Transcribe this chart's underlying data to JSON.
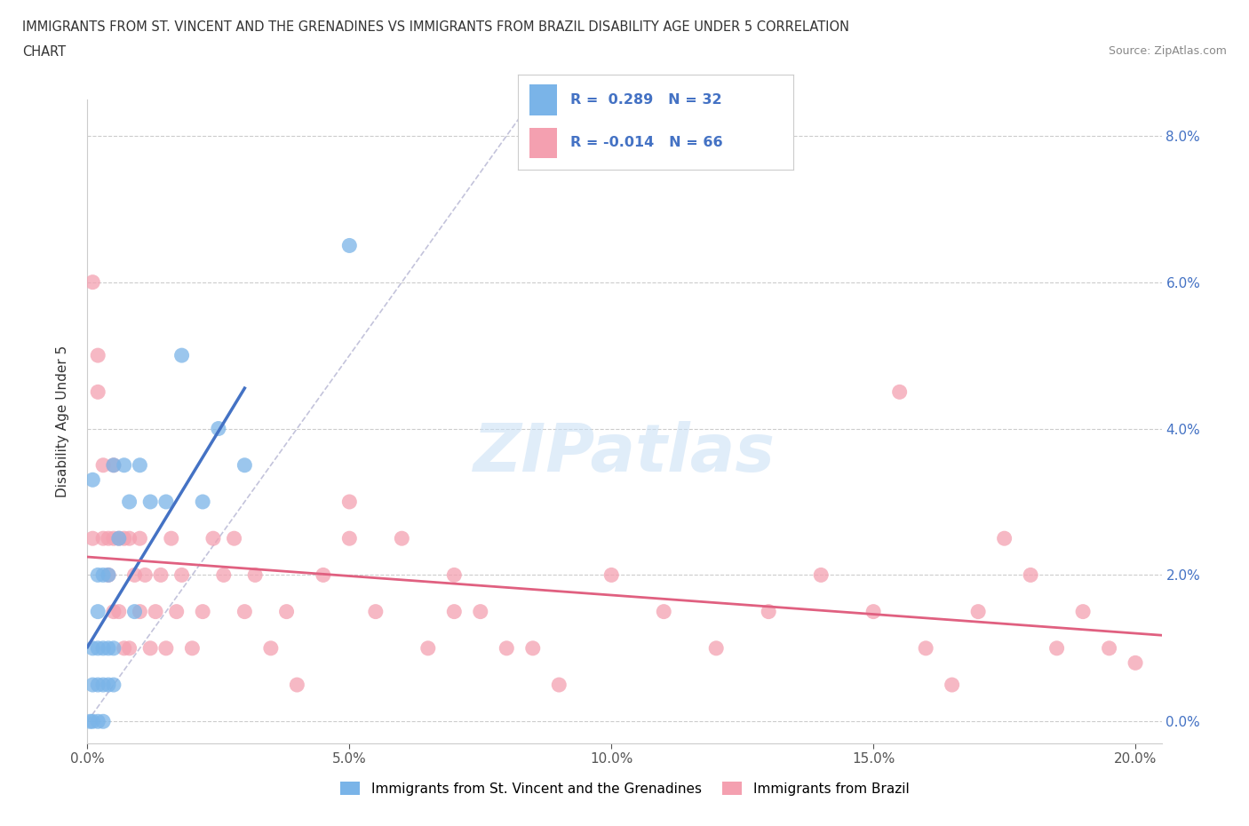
{
  "title_line1": "IMMIGRANTS FROM ST. VINCENT AND THE GRENADINES VS IMMIGRANTS FROM BRAZIL DISABILITY AGE UNDER 5 CORRELATION",
  "title_line2": "CHART",
  "source_text": "Source: ZipAtlas.com",
  "ylabel": "Disability Age Under 5",
  "watermark": "ZIPatlas",
  "R1": 0.289,
  "N1": 32,
  "R2": -0.014,
  "N2": 66,
  "color_sv": "#7ab4e8",
  "color_bz": "#f4a0b0",
  "color_sv_line": "#4472c4",
  "color_bz_line": "#e06080",
  "color_ytick": "#4472c4",
  "color_xtick": "#555555",
  "xlim": [
    0.0,
    0.205
  ],
  "ylim": [
    -0.003,
    0.085
  ],
  "xticks": [
    0.0,
    0.05,
    0.1,
    0.15,
    0.2
  ],
  "xtick_labels": [
    "0.0%",
    "5.0%",
    "10.0%",
    "15.0%",
    "20.0%"
  ],
  "yticks": [
    0.0,
    0.02,
    0.04,
    0.06,
    0.08
  ],
  "ytick_labels": [
    "0.0%",
    "2.0%",
    "4.0%",
    "6.0%",
    "8.0%"
  ],
  "sv_x": [
    0.0005,
    0.001,
    0.001,
    0.001,
    0.001,
    0.002,
    0.002,
    0.002,
    0.002,
    0.002,
    0.003,
    0.003,
    0.003,
    0.003,
    0.004,
    0.004,
    0.004,
    0.005,
    0.005,
    0.005,
    0.006,
    0.007,
    0.008,
    0.009,
    0.01,
    0.012,
    0.015,
    0.018,
    0.022,
    0.025,
    0.03,
    0.05
  ],
  "sv_y": [
    0.0,
    0.0,
    0.005,
    0.01,
    0.033,
    0.0,
    0.005,
    0.01,
    0.015,
    0.02,
    0.0,
    0.005,
    0.01,
    0.02,
    0.005,
    0.01,
    0.02,
    0.005,
    0.01,
    0.035,
    0.025,
    0.035,
    0.03,
    0.015,
    0.035,
    0.03,
    0.03,
    0.05,
    0.03,
    0.04,
    0.035,
    0.065
  ],
  "bz_x": [
    0.001,
    0.001,
    0.002,
    0.002,
    0.003,
    0.003,
    0.004,
    0.004,
    0.005,
    0.005,
    0.005,
    0.006,
    0.006,
    0.007,
    0.007,
    0.008,
    0.008,
    0.009,
    0.01,
    0.01,
    0.011,
    0.012,
    0.013,
    0.014,
    0.015,
    0.016,
    0.017,
    0.018,
    0.02,
    0.022,
    0.024,
    0.026,
    0.028,
    0.03,
    0.032,
    0.035,
    0.038,
    0.04,
    0.045,
    0.05,
    0.055,
    0.06,
    0.065,
    0.07,
    0.075,
    0.08,
    0.09,
    0.1,
    0.11,
    0.12,
    0.13,
    0.14,
    0.15,
    0.16,
    0.165,
    0.17,
    0.175,
    0.18,
    0.185,
    0.19,
    0.195,
    0.2,
    0.05,
    0.07,
    0.085,
    0.155
  ],
  "bz_y": [
    0.025,
    0.06,
    0.045,
    0.05,
    0.025,
    0.035,
    0.02,
    0.025,
    0.015,
    0.025,
    0.035,
    0.015,
    0.025,
    0.01,
    0.025,
    0.01,
    0.025,
    0.02,
    0.015,
    0.025,
    0.02,
    0.01,
    0.015,
    0.02,
    0.01,
    0.025,
    0.015,
    0.02,
    0.01,
    0.015,
    0.025,
    0.02,
    0.025,
    0.015,
    0.02,
    0.01,
    0.015,
    0.005,
    0.02,
    0.025,
    0.015,
    0.025,
    0.01,
    0.02,
    0.015,
    0.01,
    0.005,
    0.02,
    0.015,
    0.01,
    0.015,
    0.02,
    0.015,
    0.01,
    0.005,
    0.015,
    0.025,
    0.02,
    0.01,
    0.015,
    0.01,
    0.008,
    0.03,
    0.015,
    0.01,
    0.045
  ]
}
